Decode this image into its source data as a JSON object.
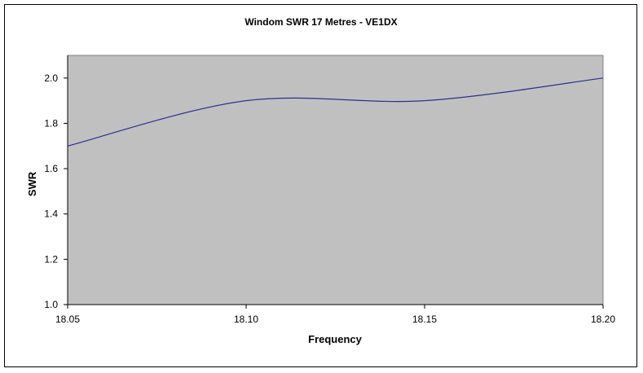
{
  "chart_data": {
    "type": "line",
    "title": "Windom SWR 17 Metres - VE1DX",
    "xlabel": "Frequency",
    "ylabel": "SWR",
    "x": [
      18.05,
      18.1,
      18.15,
      18.2
    ],
    "x_tick_labels": [
      "18.05",
      "18.10",
      "18.15",
      "18.20"
    ],
    "y_tick_labels": [
      "1.0",
      "1.2",
      "1.4",
      "1.6",
      "1.8",
      "2.0"
    ],
    "xlim": [
      18.05,
      18.2
    ],
    "ylim": [
      1.0,
      2.1
    ],
    "series": [
      {
        "values": [
          1.7,
          1.9,
          1.9,
          2.0
        ]
      }
    ],
    "smoothed": true,
    "grid": false,
    "legend": "none",
    "colors": {
      "plot_background": "#c0c0c0",
      "line": "#2e2e8f",
      "axis": "#000000"
    }
  }
}
